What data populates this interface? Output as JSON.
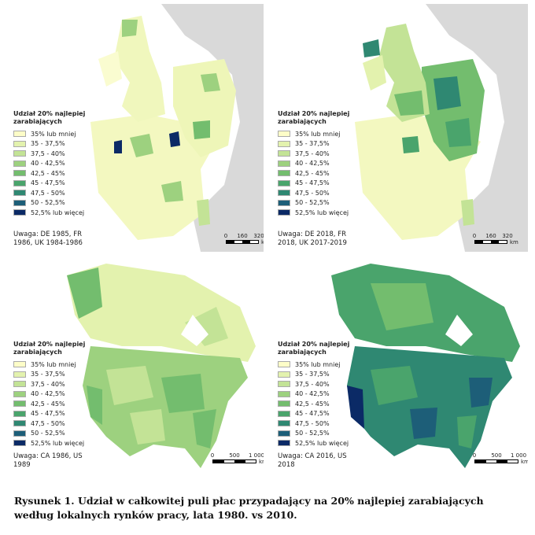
{
  "panels": [
    {
      "legend": {
        "title": "Udział 20% najlepiej zarabiających",
        "items": [
          {
            "label": "35% lub mniej",
            "color": "#fdfdc8"
          },
          {
            "label": "35 - 37,5%",
            "color": "#e3f2ae"
          },
          {
            "label": "37,5 - 40%",
            "color": "#c3e396"
          },
          {
            "label": "40 - 42,5%",
            "color": "#9dd17f"
          },
          {
            "label": "42,5 - 45%",
            "color": "#73bd6e"
          },
          {
            "label": "45 - 47,5%",
            "color": "#4aa46c"
          },
          {
            "label": "47,5 - 50%",
            "color": "#2f8872"
          },
          {
            "label": "50 - 52,5%",
            "color": "#1d5e78"
          },
          {
            "label": "52,5% lub więcej",
            "color": "#0b2a66"
          }
        ]
      },
      "note": "Uwaga: DE 1985, FR 1986, UK 1984-1986",
      "scale": {
        "labels": [
          "0",
          "160",
          "320"
        ],
        "unit": "km"
      }
    },
    {
      "legend": {
        "title": "Udział 20% najlepiej zarabiających",
        "items": [
          {
            "label": "35% lub mniej",
            "color": "#fdfdc8"
          },
          {
            "label": "35 - 37,5%",
            "color": "#e3f2ae"
          },
          {
            "label": "37,5 - 40%",
            "color": "#c3e396"
          },
          {
            "label": "40 - 42,5%",
            "color": "#9dd17f"
          },
          {
            "label": "42,5 - 45%",
            "color": "#73bd6e"
          },
          {
            "label": "45 - 47,5%",
            "color": "#4aa46c"
          },
          {
            "label": "47,5 - 50%",
            "color": "#2f8872"
          },
          {
            "label": "50 - 52,5%",
            "color": "#1d5e78"
          },
          {
            "label": "52,5% lub więcej",
            "color": "#0b2a66"
          }
        ]
      },
      "note": "Uwaga: DE 2018, FR 2018, UK 2017-2019",
      "scale": {
        "labels": [
          "0",
          "160",
          "320"
        ],
        "unit": "km"
      }
    },
    {
      "legend": {
        "title": "Udział 20% najlepiej zarabiających",
        "items": [
          {
            "label": "35% lub mniej",
            "color": "#fdfdc8"
          },
          {
            "label": "35 - 37,5%",
            "color": "#e3f2ae"
          },
          {
            "label": "37,5 - 40%",
            "color": "#c3e396"
          },
          {
            "label": "40 - 42,5%",
            "color": "#9dd17f"
          },
          {
            "label": "42,5 - 45%",
            "color": "#73bd6e"
          },
          {
            "label": "45 - 47,5%",
            "color": "#4aa46c"
          },
          {
            "label": "47,5 - 50%",
            "color": "#2f8872"
          },
          {
            "label": "50 - 52,5%",
            "color": "#1d5e78"
          },
          {
            "label": "52,5% lub więcej",
            "color": "#0b2a66"
          }
        ]
      },
      "note": "Uwaga: CA 1986, US 1989",
      "scale": {
        "labels": [
          "0",
          "500",
          "1 000"
        ],
        "unit": "km"
      }
    },
    {
      "legend": {
        "title": "Udział 20% najlepiej zarabiających",
        "items": [
          {
            "label": "35% lub mniej",
            "color": "#fdfdc8"
          },
          {
            "label": "35 - 37,5%",
            "color": "#e3f2ae"
          },
          {
            "label": "37,5 - 40%",
            "color": "#c3e396"
          },
          {
            "label": "40 - 42,5%",
            "color": "#9dd17f"
          },
          {
            "label": "42,5 - 45%",
            "color": "#73bd6e"
          },
          {
            "label": "45 - 47,5%",
            "color": "#4aa46c"
          },
          {
            "label": "47,5 - 50%",
            "color": "#2f8872"
          },
          {
            "label": "50 - 52,5%",
            "color": "#1d5e78"
          },
          {
            "label": "52,5% lub więcej",
            "color": "#0b2a66"
          }
        ]
      },
      "note": "Uwaga: CA 2016, US 2018",
      "scale": {
        "labels": [
          "0",
          "500",
          "1 000"
        ],
        "unit": "km"
      }
    }
  ],
  "caption": "Rysunek 1. Udział w całkowitej puli płac przypadający na 20% najlepiej zarabiających według lokalnych rynków pracy, lata 1980. vs 2010."
}
